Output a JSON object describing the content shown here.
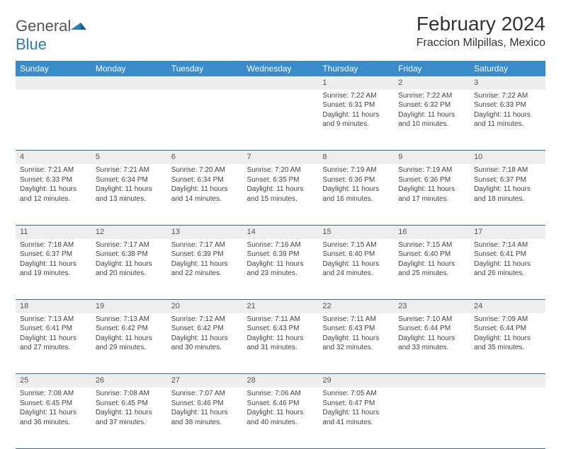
{
  "brand": {
    "name_a": "General",
    "name_b": "Blue"
  },
  "title": "February 2024",
  "location": "Fraccion Milpillas, Mexico",
  "colors": {
    "header_bg": "#3a8bc9",
    "header_text": "#ffffff",
    "daynum_bg": "#eeeeee",
    "row_divider": "#3a6a8f",
    "brand_blue": "#2b7bbf",
    "text": "#444444"
  },
  "fonts": {
    "title_size": 28,
    "location_size": 16,
    "th_size": 12,
    "cell_size": 10
  },
  "weekdays": [
    "Sunday",
    "Monday",
    "Tuesday",
    "Wednesday",
    "Thursday",
    "Friday",
    "Saturday"
  ],
  "weeks": [
    [
      null,
      null,
      null,
      null,
      {
        "n": "1",
        "sr": "Sunrise: 7:22 AM",
        "ss": "Sunset: 6:31 PM",
        "dl": "Daylight: 11 hours and 9 minutes."
      },
      {
        "n": "2",
        "sr": "Sunrise: 7:22 AM",
        "ss": "Sunset: 6:32 PM",
        "dl": "Daylight: 11 hours and 10 minutes."
      },
      {
        "n": "3",
        "sr": "Sunrise: 7:22 AM",
        "ss": "Sunset: 6:33 PM",
        "dl": "Daylight: 11 hours and 11 minutes."
      }
    ],
    [
      {
        "n": "4",
        "sr": "Sunrise: 7:21 AM",
        "ss": "Sunset: 6:33 PM",
        "dl": "Daylight: 11 hours and 12 minutes."
      },
      {
        "n": "5",
        "sr": "Sunrise: 7:21 AM",
        "ss": "Sunset: 6:34 PM",
        "dl": "Daylight: 11 hours and 13 minutes."
      },
      {
        "n": "6",
        "sr": "Sunrise: 7:20 AM",
        "ss": "Sunset: 6:34 PM",
        "dl": "Daylight: 11 hours and 14 minutes."
      },
      {
        "n": "7",
        "sr": "Sunrise: 7:20 AM",
        "ss": "Sunset: 6:35 PM",
        "dl": "Daylight: 11 hours and 15 minutes."
      },
      {
        "n": "8",
        "sr": "Sunrise: 7:19 AM",
        "ss": "Sunset: 6:36 PM",
        "dl": "Daylight: 11 hours and 16 minutes."
      },
      {
        "n": "9",
        "sr": "Sunrise: 7:19 AM",
        "ss": "Sunset: 6:36 PM",
        "dl": "Daylight: 11 hours and 17 minutes."
      },
      {
        "n": "10",
        "sr": "Sunrise: 7:18 AM",
        "ss": "Sunset: 6:37 PM",
        "dl": "Daylight: 11 hours and 18 minutes."
      }
    ],
    [
      {
        "n": "11",
        "sr": "Sunrise: 7:18 AM",
        "ss": "Sunset: 6:37 PM",
        "dl": "Daylight: 11 hours and 19 minutes."
      },
      {
        "n": "12",
        "sr": "Sunrise: 7:17 AM",
        "ss": "Sunset: 6:38 PM",
        "dl": "Daylight: 11 hours and 20 minutes."
      },
      {
        "n": "13",
        "sr": "Sunrise: 7:17 AM",
        "ss": "Sunset: 6:39 PM",
        "dl": "Daylight: 11 hours and 22 minutes."
      },
      {
        "n": "14",
        "sr": "Sunrise: 7:16 AM",
        "ss": "Sunset: 6:39 PM",
        "dl": "Daylight: 11 hours and 23 minutes."
      },
      {
        "n": "15",
        "sr": "Sunrise: 7:15 AM",
        "ss": "Sunset: 6:40 PM",
        "dl": "Daylight: 11 hours and 24 minutes."
      },
      {
        "n": "16",
        "sr": "Sunrise: 7:15 AM",
        "ss": "Sunset: 6:40 PM",
        "dl": "Daylight: 11 hours and 25 minutes."
      },
      {
        "n": "17",
        "sr": "Sunrise: 7:14 AM",
        "ss": "Sunset: 6:41 PM",
        "dl": "Daylight: 11 hours and 26 minutes."
      }
    ],
    [
      {
        "n": "18",
        "sr": "Sunrise: 7:13 AM",
        "ss": "Sunset: 6:41 PM",
        "dl": "Daylight: 11 hours and 27 minutes."
      },
      {
        "n": "19",
        "sr": "Sunrise: 7:13 AM",
        "ss": "Sunset: 6:42 PM",
        "dl": "Daylight: 11 hours and 29 minutes."
      },
      {
        "n": "20",
        "sr": "Sunrise: 7:12 AM",
        "ss": "Sunset: 6:42 PM",
        "dl": "Daylight: 11 hours and 30 minutes."
      },
      {
        "n": "21",
        "sr": "Sunrise: 7:11 AM",
        "ss": "Sunset: 6:43 PM",
        "dl": "Daylight: 11 hours and 31 minutes."
      },
      {
        "n": "22",
        "sr": "Sunrise: 7:11 AM",
        "ss": "Sunset: 6:43 PM",
        "dl": "Daylight: 11 hours and 32 minutes."
      },
      {
        "n": "23",
        "sr": "Sunrise: 7:10 AM",
        "ss": "Sunset: 6:44 PM",
        "dl": "Daylight: 11 hours and 33 minutes."
      },
      {
        "n": "24",
        "sr": "Sunrise: 7:09 AM",
        "ss": "Sunset: 6:44 PM",
        "dl": "Daylight: 11 hours and 35 minutes."
      }
    ],
    [
      {
        "n": "25",
        "sr": "Sunrise: 7:08 AM",
        "ss": "Sunset: 6:45 PM",
        "dl": "Daylight: 11 hours and 36 minutes."
      },
      {
        "n": "26",
        "sr": "Sunrise: 7:08 AM",
        "ss": "Sunset: 6:45 PM",
        "dl": "Daylight: 11 hours and 37 minutes."
      },
      {
        "n": "27",
        "sr": "Sunrise: 7:07 AM",
        "ss": "Sunset: 6:46 PM",
        "dl": "Daylight: 11 hours and 38 minutes."
      },
      {
        "n": "28",
        "sr": "Sunrise: 7:06 AM",
        "ss": "Sunset: 6:46 PM",
        "dl": "Daylight: 11 hours and 40 minutes."
      },
      {
        "n": "29",
        "sr": "Sunrise: 7:05 AM",
        "ss": "Sunset: 6:47 PM",
        "dl": "Daylight: 11 hours and 41 minutes."
      },
      null,
      null
    ]
  ]
}
